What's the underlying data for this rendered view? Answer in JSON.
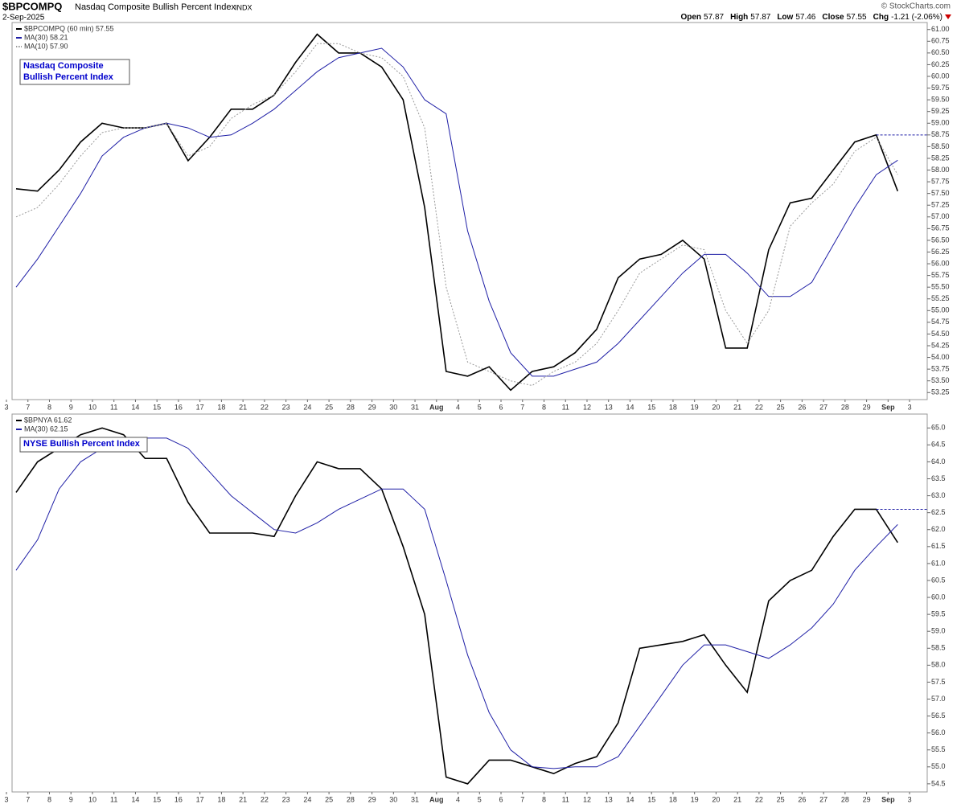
{
  "header": {
    "symbol": "$BPCOMPQ",
    "name": "Nasdaq Composite Bullish Percent Index",
    "exchange": "INDX",
    "date": "2-Sep-2025",
    "source": "© StockCharts.com",
    "quote": [
      {
        "label": "Open",
        "value": "57.87"
      },
      {
        "label": "High",
        "value": "57.87"
      },
      {
        "label": "Low",
        "value": "57.46"
      },
      {
        "label": "Close",
        "value": "57.55"
      },
      {
        "label": "Chg",
        "value": "-1.21 (-2.06%)"
      }
    ]
  },
  "chart_data": [
    {
      "type": "line",
      "title": [
        "Nasdaq Composite",
        "Bullish Percent Index"
      ],
      "categories": [
        "3",
        "7",
        "8",
        "9",
        "10",
        "11",
        "14",
        "15",
        "16",
        "17",
        "18",
        "21",
        "22",
        "23",
        "24",
        "25",
        "28",
        "29",
        "30",
        "31",
        "Aug",
        "4",
        "5",
        "6",
        "7",
        "8",
        "11",
        "12",
        "13",
        "14",
        "15",
        "18",
        "19",
        "20",
        "21",
        "22",
        "25",
        "26",
        "27",
        "28",
        "29",
        "Sep",
        "3"
      ],
      "series": [
        {
          "name": "$BPCOMPQ (60 min) 57.55",
          "color": "#000000",
          "style": "solid",
          "values": [
            57.6,
            57.55,
            58.0,
            58.6,
            59.0,
            58.9,
            58.9,
            59.0,
            58.2,
            58.7,
            59.3,
            59.3,
            59.6,
            60.3,
            60.9,
            60.5,
            60.5,
            60.2,
            59.5,
            57.2,
            53.7,
            53.6,
            53.8,
            53.3,
            53.7,
            53.8,
            54.1,
            54.6,
            55.7,
            56.1,
            56.2,
            56.5,
            56.1,
            54.2,
            54.2,
            56.3,
            57.3,
            57.4,
            58.0,
            58.6,
            58.75,
            57.55,
            null
          ]
        },
        {
          "name": "MA(30) 58.21",
          "color": "#1f1fa6",
          "style": "solid",
          "values": [
            55.5,
            56.1,
            56.8,
            57.5,
            58.3,
            58.7,
            58.9,
            59.0,
            58.9,
            58.7,
            58.75,
            59.0,
            59.3,
            59.7,
            60.1,
            60.4,
            60.5,
            60.6,
            60.2,
            59.5,
            59.2,
            56.7,
            55.2,
            54.1,
            53.6,
            53.6,
            53.75,
            53.9,
            54.3,
            54.8,
            55.3,
            55.8,
            56.2,
            56.2,
            55.8,
            55.3,
            55.3,
            55.6,
            56.4,
            57.2,
            57.9,
            58.21,
            null
          ]
        },
        {
          "name": "MA(10) 57.90",
          "color": "#999999",
          "style": "dotted",
          "values": [
            57.0,
            57.2,
            57.7,
            58.3,
            58.8,
            58.9,
            58.9,
            59.0,
            58.3,
            58.5,
            59.1,
            59.4,
            59.6,
            60.1,
            60.7,
            60.7,
            60.5,
            60.4,
            60.0,
            58.9,
            55.5,
            53.9,
            53.7,
            53.5,
            53.4,
            53.7,
            53.9,
            54.3,
            55.0,
            55.8,
            56.1,
            56.4,
            56.3,
            55.0,
            54.3,
            55.0,
            56.8,
            57.3,
            57.7,
            58.4,
            58.7,
            57.9,
            null
          ]
        }
      ],
      "ylim": [
        53.1,
        61.15
      ],
      "yticks": [
        53.25,
        {
          "value": 53.5,
          "label": "53.50"
        },
        53.75,
        {
          "value": 54,
          "label": "54.00"
        },
        54.25,
        {
          "value": 54.5,
          "label": "54.50"
        },
        54.75,
        {
          "value": 55,
          "label": "55.00"
        },
        55.25,
        {
          "value": 55.5,
          "label": "55.50"
        },
        55.75,
        {
          "value": 56,
          "label": "56.00"
        },
        56.25,
        {
          "value": 56.5,
          "label": "56.50"
        },
        56.75,
        {
          "value": 57,
          "label": "57.00"
        },
        57.25,
        {
          "value": 57.5,
          "label": "57.50"
        },
        57.75,
        {
          "value": 58,
          "label": "58.00"
        },
        58.25,
        {
          "value": 58.5,
          "label": "58.50"
        },
        58.75,
        {
          "value": 59,
          "label": "59.00"
        },
        59.25,
        {
          "value": 59.5,
          "label": "59.50"
        },
        59.75,
        {
          "value": 60,
          "label": "60.00"
        },
        60.25,
        {
          "value": 60.5,
          "label": "60.50"
        },
        60.75,
        {
          "value": 61,
          "label": "61.00"
        }
      ]
    },
    {
      "type": "line",
      "title": [
        "NYSE Bullish Percent Index"
      ],
      "categories": [
        "3",
        "7",
        "8",
        "9",
        "10",
        "11",
        "14",
        "15",
        "16",
        "17",
        "18",
        "21",
        "22",
        "23",
        "24",
        "25",
        "28",
        "29",
        "30",
        "31",
        "Aug",
        "4",
        "5",
        "6",
        "7",
        "8",
        "11",
        "12",
        "13",
        "14",
        "15",
        "18",
        "19",
        "20",
        "21",
        "22",
        "25",
        "26",
        "27",
        "28",
        "29",
        "Sep",
        "3"
      ],
      "series": [
        {
          "name": "$BPNYA 61.62",
          "color": "#000000",
          "style": "solid",
          "values": [
            63.1,
            64.0,
            64.4,
            64.8,
            65.0,
            64.8,
            64.1,
            64.1,
            62.8,
            61.9,
            61.9,
            61.9,
            61.8,
            63.0,
            64.0,
            63.8,
            63.8,
            63.2,
            61.5,
            59.5,
            54.7,
            54.5,
            55.2,
            55.2,
            55.0,
            54.8,
            55.1,
            55.3,
            56.3,
            58.5,
            58.6,
            58.7,
            58.9,
            58.0,
            57.2,
            59.9,
            60.5,
            60.8,
            61.8,
            62.6,
            62.6,
            61.62,
            null
          ]
        },
        {
          "name": "MA(30) 62.15",
          "color": "#1f1fa6",
          "style": "solid",
          "values": [
            60.8,
            61.7,
            63.2,
            64.0,
            64.4,
            64.6,
            64.7,
            64.7,
            64.4,
            63.7,
            63.0,
            62.5,
            62.0,
            61.9,
            62.2,
            62.6,
            62.9,
            63.2,
            63.2,
            62.6,
            60.5,
            58.3,
            56.6,
            55.5,
            55.0,
            54.95,
            55.0,
            55.0,
            55.3,
            56.2,
            57.1,
            58.0,
            58.6,
            58.6,
            58.4,
            58.2,
            58.6,
            59.1,
            59.8,
            60.8,
            61.5,
            62.15,
            null
          ]
        }
      ],
      "ylim": [
        54.26,
        65.41
      ],
      "yticks": [
        54.5,
        {
          "value": 55,
          "label": "55.0"
        },
        55.5,
        {
          "value": 56,
          "label": "56.0"
        },
        56.5,
        {
          "value": 57,
          "label": "57.0"
        },
        57.5,
        {
          "value": 58,
          "label": "58.0"
        },
        58.5,
        {
          "value": 59,
          "label": "59.0"
        },
        59.5,
        {
          "value": 60,
          "label": "60.0"
        },
        60.5,
        {
          "value": 61,
          "label": "61.0"
        },
        61.5,
        {
          "value": 62,
          "label": "62.0"
        },
        62.5,
        {
          "value": 63,
          "label": "63.0"
        },
        63.5,
        {
          "value": 64,
          "label": "64.0"
        },
        64.5,
        {
          "value": 65,
          "label": "65.0"
        }
      ]
    }
  ]
}
